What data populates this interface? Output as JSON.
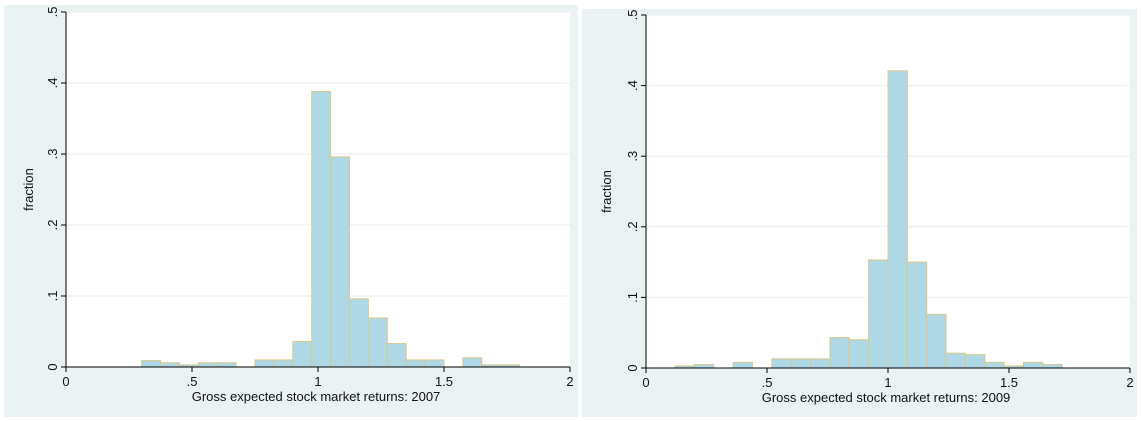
{
  "chart_data": [
    {
      "type": "bar",
      "xlabel": "Gross expected stock market returns: 2007",
      "ylabel": "fraction",
      "xlim": [
        0,
        2
      ],
      "ylim": [
        0,
        0.5
      ],
      "x_ticks": [
        0,
        0.5,
        1,
        1.5,
        2
      ],
      "x_tick_labels": [
        "0",
        ".5",
        "1",
        "1.5",
        "2"
      ],
      "y_ticks": [
        0,
        0.1,
        0.2,
        0.3,
        0.4,
        0.5
      ],
      "y_tick_labels": [
        "0",
        ".1",
        ".2",
        ".3",
        ".4",
        ".5"
      ],
      "grid": true,
      "bar_color": "#aed8e6",
      "bar_edge_color": "#d9c98c",
      "bin_width": 0.075,
      "bins": [
        0.3,
        0.375,
        0.45,
        0.525,
        0.6,
        0.675,
        0.75,
        0.825,
        0.9,
        0.975,
        1.05,
        1.125,
        1.2,
        1.275,
        1.35,
        1.425,
        1.5,
        1.575,
        1.65,
        1.725
      ],
      "values": [
        0.009,
        0.006,
        0.003,
        0.006,
        0.006,
        0,
        0.01,
        0.01,
        0.036,
        0.388,
        0.296,
        0.096,
        0.069,
        0.033,
        0.01,
        0.01,
        0,
        0.013,
        0.003,
        0.003
      ]
    },
    {
      "type": "bar",
      "xlabel": "Gross expected stock market returns: 2009",
      "ylabel": "fraction",
      "xlim": [
        0,
        2
      ],
      "ylim": [
        0,
        0.5
      ],
      "x_ticks": [
        0,
        0.5,
        1,
        1.5,
        2
      ],
      "x_tick_labels": [
        "0",
        ".5",
        "1",
        "1.5",
        "2"
      ],
      "y_ticks": [
        0,
        0.1,
        0.2,
        0.3,
        0.4,
        0.5
      ],
      "y_tick_labels": [
        "0",
        ".1",
        ".2",
        ".3",
        ".4",
        ".5"
      ],
      "grid": true,
      "bar_color": "#aed8e6",
      "bar_edge_color": "#d9c98c",
      "bin_width": 0.08,
      "bins": [
        0.12,
        0.2,
        0.28,
        0.36,
        0.44,
        0.52,
        0.6,
        0.68,
        0.76,
        0.84,
        0.92,
        1.0,
        1.08,
        1.16,
        1.24,
        1.32,
        1.4,
        1.48,
        1.56,
        1.64
      ],
      "values": [
        0.003,
        0.005,
        0,
        0.008,
        0,
        0.013,
        0.013,
        0.013,
        0.043,
        0.04,
        0.153,
        0.421,
        0.15,
        0.076,
        0.021,
        0.019,
        0.008,
        0.003,
        0.008,
        0.005
      ]
    }
  ]
}
